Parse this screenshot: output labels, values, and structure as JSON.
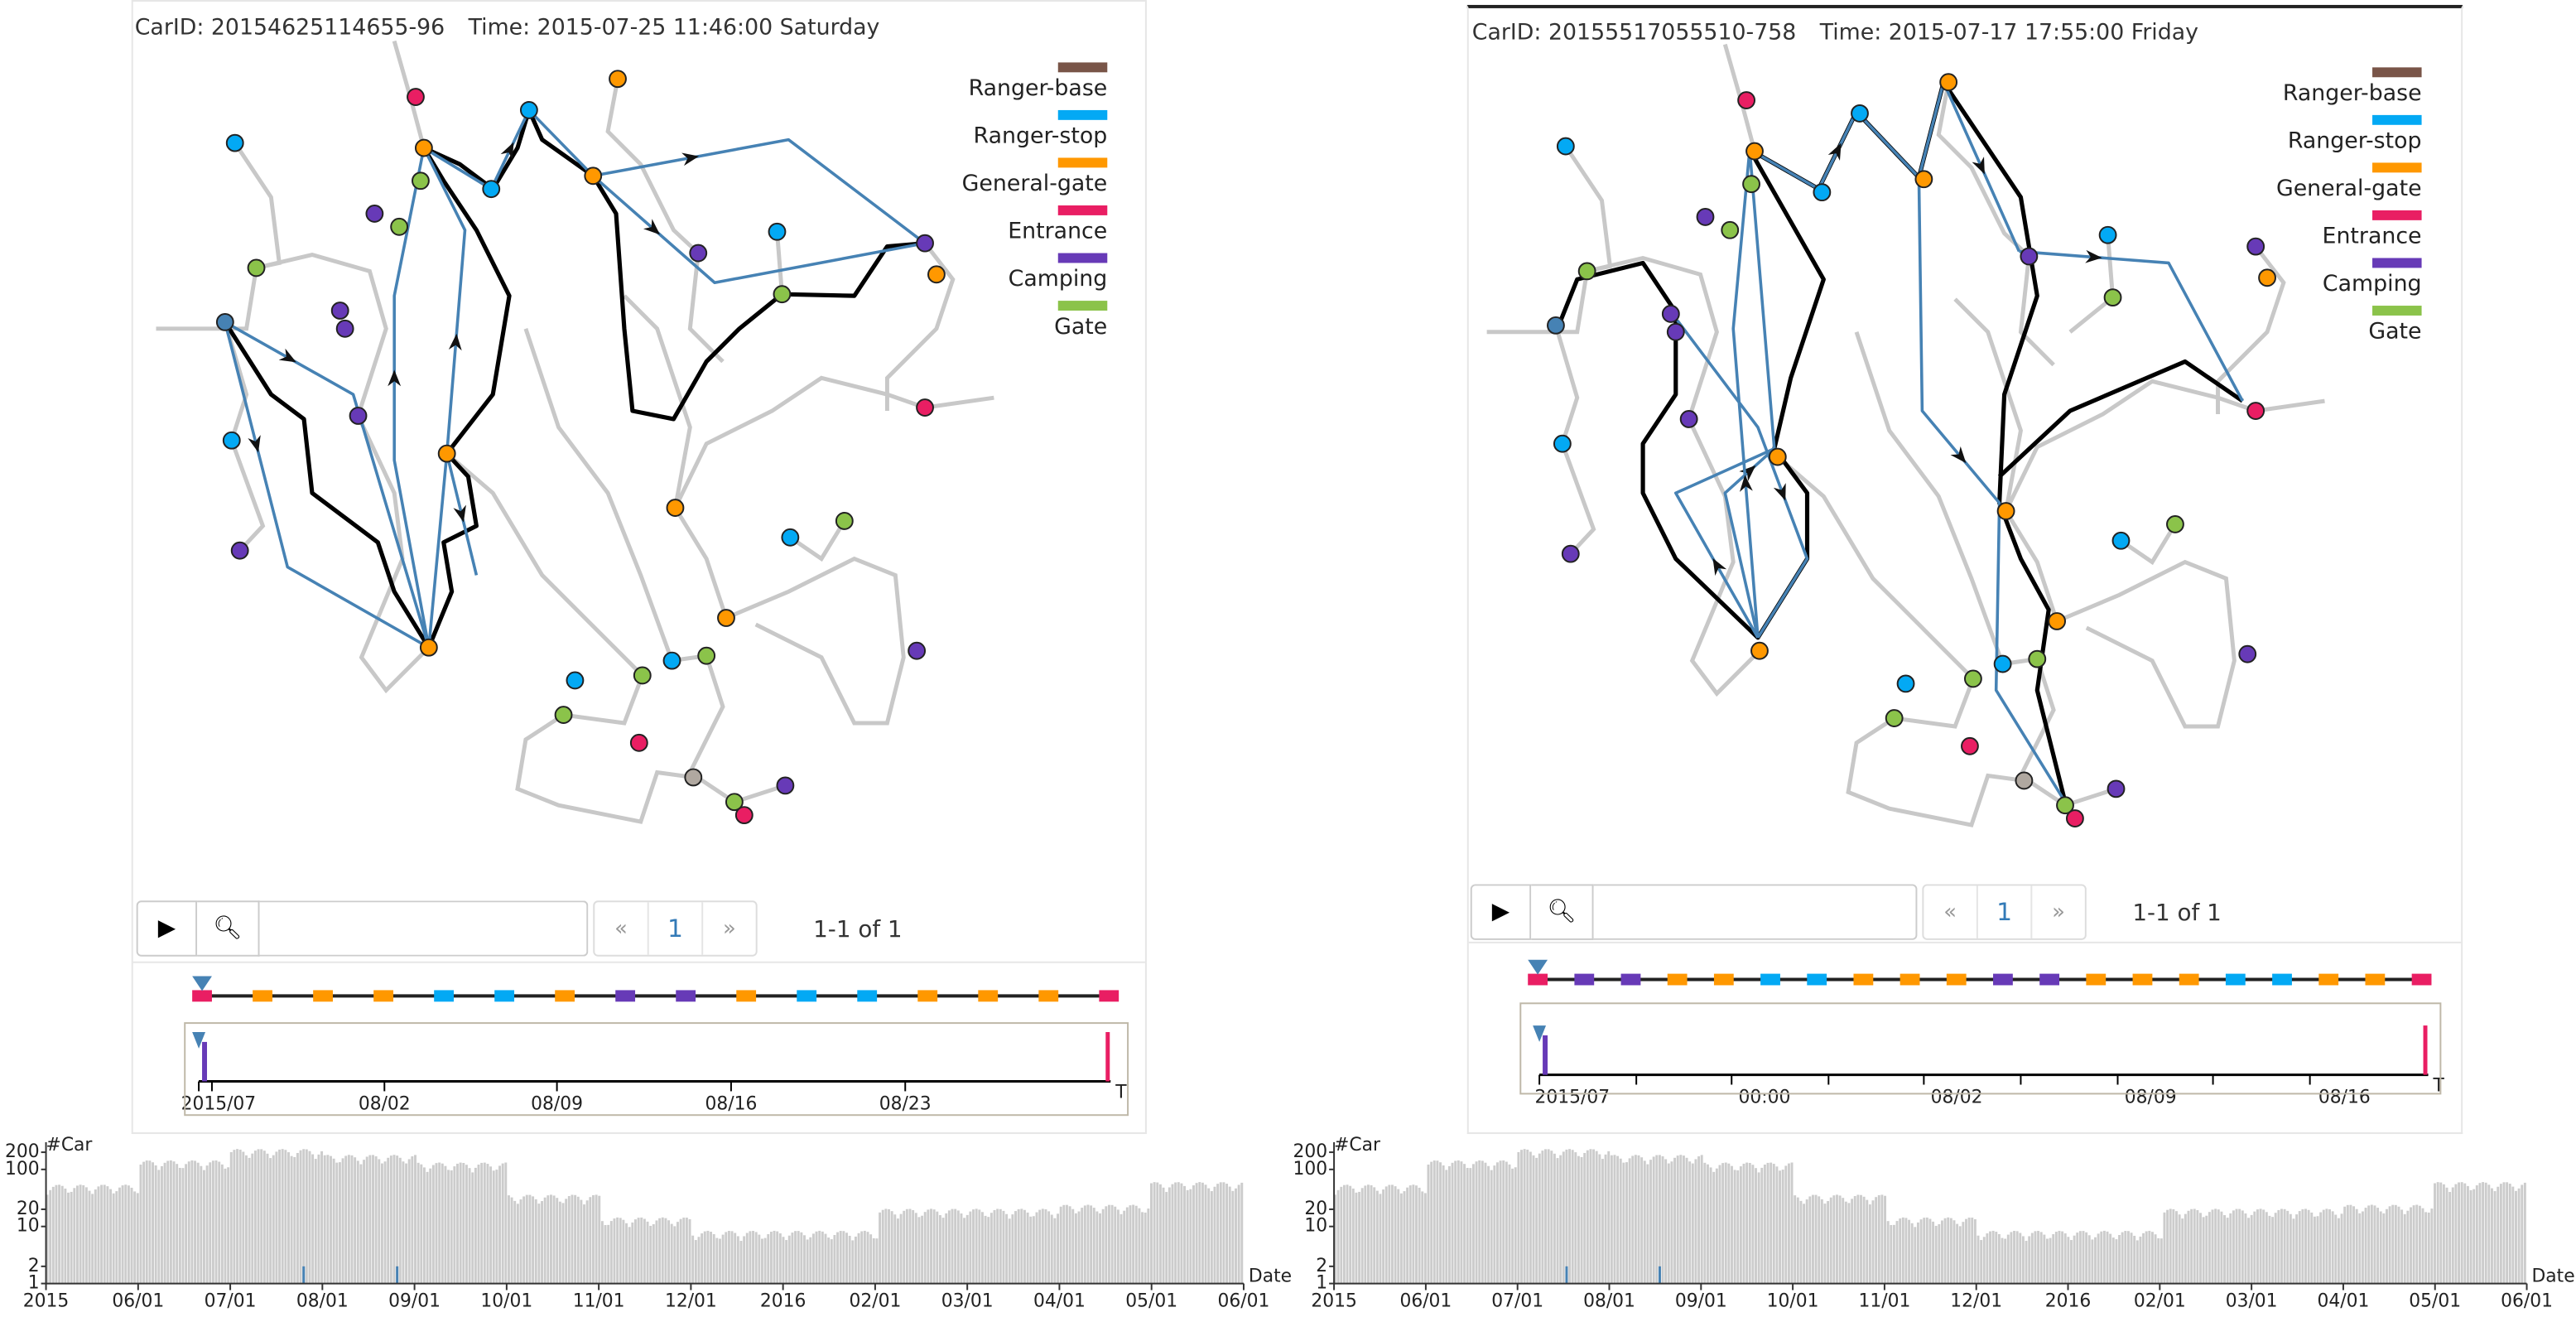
{
  "legend": {
    "items": [
      {
        "label": "Ranger-base",
        "color": "#795548"
      },
      {
        "label": "Ranger-stop",
        "color": "#03A9F4"
      },
      {
        "label": "General-gate",
        "color": "#FF9800"
      },
      {
        "label": "Entrance",
        "color": "#E91E63"
      },
      {
        "label": "Camping",
        "color": "#673AB7"
      },
      {
        "label": "Gate",
        "color": "#8BC34A"
      }
    ]
  },
  "colors": {
    "route": "#4682B4",
    "path": "#000000",
    "road": "#c8c8c8",
    "histogram_bar": "#cccccc",
    "highlight_bar": "#4682B4"
  },
  "panels": [
    {
      "car_id": "CarID: 20154625114655-96",
      "time": "Time: 2015-07-25 11:46:00 Saturday",
      "toolbar": {
        "play_icon": "play-icon",
        "search_icon": "search-icon",
        "search_value": "",
        "prev": "«",
        "page": "1",
        "next": "»",
        "count": "1-1 of 1"
      },
      "sequence": [
        "Entrance",
        "General-gate",
        "General-gate",
        "General-gate",
        "Ranger-stop",
        "Ranger-stop",
        "General-gate",
        "Camping",
        "Camping",
        "General-gate",
        "Ranger-stop",
        "Ranger-stop",
        "General-gate",
        "General-gate",
        "General-gate",
        "Entrance"
      ],
      "timeline": {
        "labels": [
          "2015/07",
          "08/02",
          "08/09",
          "08/16",
          "08/23"
        ],
        "end_label": "T"
      }
    },
    {
      "car_id": "CarID: 20155517055510-758",
      "time": "Time: 2015-07-17 17:55:00 Friday",
      "toolbar": {
        "play_icon": "play-icon",
        "search_icon": "search-icon",
        "search_value": "",
        "prev": "«",
        "page": "1",
        "next": "»",
        "count": "1-1 of 1"
      },
      "sequence": [
        "Entrance",
        "Camping",
        "Camping",
        "General-gate",
        "General-gate",
        "Ranger-stop",
        "Ranger-stop",
        "General-gate",
        "General-gate",
        "General-gate",
        "Camping",
        "Camping",
        "General-gate",
        "General-gate",
        "General-gate",
        "Ranger-stop",
        "Ranger-stop",
        "General-gate",
        "General-gate",
        "Entrance"
      ],
      "timeline": {
        "labels": [
          "2015/07",
          "00:00",
          "08/02",
          "08/09",
          "08/16"
        ],
        "end_label": "T"
      }
    }
  ],
  "chart_data": [
    {
      "type": "bar",
      "ylabel": "#Car",
      "xlabel": "Date",
      "yscale": "log",
      "ylim": [
        1,
        300
      ],
      "yticks": [
        "200",
        "100",
        "20",
        "10",
        "2",
        "1"
      ],
      "xticks": [
        "2015",
        "06/01",
        "07/01",
        "08/01",
        "09/01",
        "10/01",
        "11/01",
        "12/01",
        "2016",
        "02/01",
        "03/01",
        "04/01",
        "05/01",
        "06/01"
      ],
      "monthly_level": {
        "categories": [
          "2015-05",
          "2015-06",
          "2015-07",
          "2015-08",
          "2015-09",
          "2015-10",
          "2015-11",
          "2015-12",
          "2016-01",
          "2016-02",
          "2016-03",
          "2016-04",
          "2016-05"
        ],
        "values": [
          45,
          120,
          190,
          150,
          110,
          30,
          12,
          7,
          7,
          17,
          17,
          20,
          50
        ]
      },
      "highlight": [
        {
          "date": "2015-07-25",
          "value": 2
        },
        {
          "date": "2015-08-25",
          "value": 2
        }
      ]
    },
    {
      "type": "bar",
      "ylabel": "#Car",
      "xlabel": "Date",
      "yscale": "log",
      "ylim": [
        1,
        300
      ],
      "yticks": [
        "200",
        "100",
        "20",
        "10",
        "2",
        "1"
      ],
      "xticks": [
        "2015",
        "06/01",
        "07/01",
        "08/01",
        "09/01",
        "10/01",
        "11/01",
        "12/01",
        "2016",
        "02/01",
        "03/01",
        "04/01",
        "05/01",
        "06/01"
      ],
      "monthly_level": {
        "categories": [
          "2015-05",
          "2015-06",
          "2015-07",
          "2015-08",
          "2015-09",
          "2015-10",
          "2015-11",
          "2015-12",
          "2016-01",
          "2016-02",
          "2016-03",
          "2016-04",
          "2016-05"
        ],
        "values": [
          45,
          120,
          190,
          150,
          110,
          30,
          12,
          7,
          7,
          17,
          17,
          20,
          50
        ]
      },
      "highlight": [
        {
          "date": "2015-07-17",
          "value": 2
        },
        {
          "date": "2015-08-17",
          "value": 2
        }
      ]
    }
  ]
}
